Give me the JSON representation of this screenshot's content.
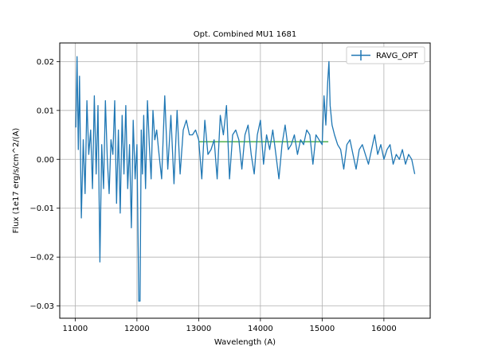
{
  "chart_data": {
    "type": "line",
    "title": "Opt. Combined MU1 1681",
    "xlabel": "Wavelength (A)",
    "ylabel": "Flux (1e17 erg/s/cm^2/(A)",
    "xlim": [
      10750,
      16750
    ],
    "ylim": [
      -0.0325,
      0.0238
    ],
    "x_ticks": [
      11000,
      12000,
      13000,
      14000,
      15000,
      16000
    ],
    "x_tick_labels": [
      "11000",
      "12000",
      "13000",
      "14000",
      "15000",
      "16000"
    ],
    "y_ticks": [
      -0.03,
      -0.02,
      -0.01,
      0.0,
      0.01,
      0.02
    ],
    "y_tick_labels": [
      "−0.03",
      "−0.02",
      "−0.01",
      "0.00",
      "0.01",
      "0.02"
    ],
    "grid": true,
    "legend": {
      "position": "top-right",
      "entries": [
        "RAVG_OPT"
      ]
    },
    "colors": {
      "series": "#1f77b4",
      "reference": "#2ca02c"
    },
    "reference_segment": {
      "x": [
        13000,
        15100
      ],
      "y": 0.0036
    },
    "series": [
      {
        "name": "RAVG_OPT",
        "x": [
          11010,
          11030,
          11050,
          11070,
          11100,
          11130,
          11160,
          11190,
          11220,
          11250,
          11280,
          11310,
          11340,
          11370,
          11400,
          11430,
          11460,
          11490,
          11520,
          11550,
          11580,
          11610,
          11640,
          11670,
          11700,
          11730,
          11760,
          11790,
          11820,
          11850,
          11880,
          11910,
          11940,
          11970,
          12000,
          12030,
          12050,
          12070,
          12090,
          12110,
          12140,
          12170,
          12200,
          12230,
          12260,
          12290,
          12320,
          12350,
          12400,
          12450,
          12500,
          12550,
          12600,
          12650,
          12700,
          12750,
          12800,
          12850,
          12900,
          12950,
          13000,
          13050,
          13100,
          13150,
          13200,
          13250,
          13300,
          13350,
          13400,
          13450,
          13500,
          13550,
          13600,
          13650,
          13700,
          13750,
          13800,
          13850,
          13900,
          13950,
          14000,
          14050,
          14100,
          14150,
          14200,
          14250,
          14300,
          14350,
          14400,
          14450,
          14500,
          14550,
          14600,
          14650,
          14700,
          14750,
          14800,
          14850,
          14900,
          14950,
          15000,
          15030,
          15060,
          15090,
          15110,
          15130,
          15160,
          15200,
          15250,
          15300,
          15350,
          15400,
          15450,
          15500,
          15550,
          15600,
          15650,
          15700,
          15750,
          15800,
          15850,
          15900,
          15950,
          16000,
          16050,
          16100,
          16150,
          16200,
          16250,
          16300,
          16350,
          16400,
          16450,
          16500
        ],
        "values": [
          0.0065,
          0.021,
          0.002,
          0.017,
          -0.012,
          0.004,
          -0.007,
          0.012,
          0.001,
          0.006,
          -0.006,
          0.013,
          -0.003,
          0.011,
          -0.021,
          0.003,
          -0.006,
          0.012,
          0.0,
          -0.007,
          0.004,
          0.001,
          0.012,
          -0.009,
          0.006,
          -0.011,
          0.009,
          -0.003,
          0.011,
          -0.006,
          0.003,
          -0.014,
          0.008,
          -0.004,
          0.003,
          -0.029,
          -0.029,
          0.006,
          -0.003,
          0.009,
          -0.006,
          0.012,
          0.003,
          -0.004,
          0.01,
          0.004,
          0.006,
          0.002,
          -0.004,
          0.013,
          -0.002,
          0.009,
          -0.005,
          0.01,
          -0.003,
          0.006,
          0.008,
          0.005,
          0.005,
          0.006,
          0.004,
          -0.004,
          0.008,
          0.001,
          0.002,
          0.004,
          -0.004,
          0.009,
          0.005,
          0.011,
          -0.004,
          0.005,
          0.006,
          0.004,
          -0.002,
          0.005,
          0.007,
          0.001,
          -0.003,
          0.005,
          0.008,
          -0.001,
          0.005,
          0.002,
          0.006,
          0.001,
          -0.004,
          0.003,
          0.007,
          0.002,
          0.003,
          0.005,
          0.001,
          0.004,
          0.003,
          0.006,
          0.005,
          -0.001,
          0.005,
          0.004,
          0.003,
          0.013,
          0.007,
          0.016,
          0.02,
          0.011,
          0.007,
          0.005,
          0.003,
          0.002,
          -0.002,
          0.003,
          0.004,
          0.001,
          -0.002,
          0.002,
          0.003,
          0.001,
          -0.001,
          0.002,
          0.005,
          0.001,
          0.003,
          0.0,
          0.002,
          0.003,
          -0.001,
          0.001,
          0.0,
          0.002,
          -0.001,
          0.001,
          0.0,
          -0.003
        ]
      }
    ]
  }
}
